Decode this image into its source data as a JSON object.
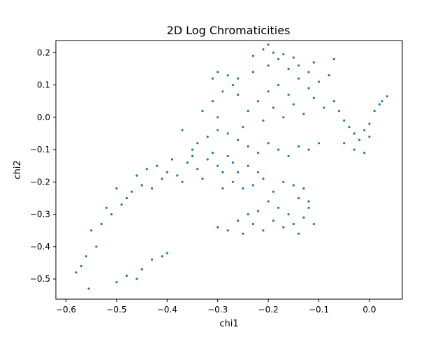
{
  "chart_data": {
    "type": "scatter",
    "title": "2D Log Chromaticities",
    "xlabel": "chi1",
    "ylabel": "chi2",
    "xlim": [
      -0.62,
      0.065
    ],
    "ylim": [
      -0.5625,
      0.2375
    ],
    "xticks": [
      -0.6,
      -0.5,
      -0.4,
      -0.3,
      -0.2,
      -0.1,
      0.0
    ],
    "xtick_labels": [
      "−0.6",
      "−0.5",
      "−0.4",
      "−0.3",
      "−0.2",
      "−0.1",
      "0.0"
    ],
    "yticks": [
      0.2,
      0.1,
      0.0,
      -0.1,
      -0.2,
      -0.3,
      -0.4,
      -0.5
    ],
    "ytick_labels": [
      "0.2",
      "0.1",
      "0.0",
      "−0.1",
      "−0.2",
      "−0.3",
      "−0.4",
      "−0.5"
    ],
    "grid": false,
    "marker_color": "#1f77b4",
    "series": [
      {
        "points": [
          [
            -0.22,
            0.05
          ],
          [
            -0.2,
            0.08
          ],
          [
            -0.18,
            0.1
          ],
          [
            -0.16,
            0.07
          ],
          [
            -0.14,
            0.12
          ],
          [
            -0.12,
            0.09
          ],
          [
            -0.1,
            0.11
          ],
          [
            -0.08,
            0.13
          ],
          [
            -0.24,
            0.02
          ],
          [
            -0.21,
            -0.01
          ],
          [
            -0.19,
            0.03
          ],
          [
            -0.17,
            0.0
          ],
          [
            -0.15,
            0.04
          ],
          [
            -0.13,
            0.01
          ],
          [
            -0.11,
            0.06
          ],
          [
            -0.09,
            0.03
          ],
          [
            -0.26,
            0.07
          ],
          [
            -0.25,
            -0.03
          ],
          [
            -0.23,
            0.14
          ],
          [
            -0.2,
            0.16
          ],
          [
            -0.18,
            0.18
          ],
          [
            -0.16,
            0.15
          ],
          [
            -0.14,
            0.16
          ],
          [
            -0.12,
            0.14
          ],
          [
            -0.07,
            0.05
          ],
          [
            -0.06,
            0.02
          ],
          [
            -0.05,
            -0.01
          ],
          [
            -0.04,
            -0.03
          ],
          [
            -0.03,
            -0.05
          ],
          [
            -0.02,
            -0.07
          ],
          [
            -0.01,
            -0.04
          ],
          [
            0.0,
            -0.02
          ],
          [
            -0.05,
            -0.08
          ],
          [
            -0.03,
            -0.1
          ],
          [
            -0.01,
            -0.11
          ],
          [
            0.0,
            -0.06
          ],
          [
            0.01,
            0.02
          ],
          [
            0.02,
            0.04
          ],
          [
            0.025,
            0.05
          ],
          [
            0.035,
            0.065
          ],
          [
            -0.2,
            0.225
          ],
          [
            -0.21,
            0.21
          ],
          [
            -0.19,
            0.2
          ],
          [
            -0.17,
            0.195
          ],
          [
            -0.23,
            0.19
          ],
          [
            -0.15,
            0.185
          ],
          [
            -0.11,
            0.17
          ],
          [
            -0.07,
            0.18
          ],
          [
            -0.36,
            -0.14
          ],
          [
            -0.34,
            -0.16
          ],
          [
            -0.32,
            -0.13
          ],
          [
            -0.3,
            -0.15
          ],
          [
            -0.28,
            -0.12
          ],
          [
            -0.38,
            -0.18
          ],
          [
            -0.4,
            -0.17
          ],
          [
            -0.42,
            -0.15
          ],
          [
            -0.33,
            -0.19
          ],
          [
            -0.31,
            -0.11
          ],
          [
            -0.29,
            -0.17
          ],
          [
            -0.35,
            -0.12
          ],
          [
            -0.37,
            -0.2
          ],
          [
            -0.39,
            -0.13
          ],
          [
            -0.41,
            -0.19
          ],
          [
            -0.27,
            -0.14
          ],
          [
            -0.44,
            -0.16
          ],
          [
            -0.46,
            -0.18
          ],
          [
            -0.45,
            -0.21
          ],
          [
            -0.43,
            -0.22
          ],
          [
            -0.47,
            -0.23
          ],
          [
            -0.48,
            -0.25
          ],
          [
            -0.5,
            -0.22
          ],
          [
            -0.49,
            -0.27
          ],
          [
            -0.52,
            -0.28
          ],
          [
            -0.51,
            -0.3
          ],
          [
            -0.53,
            -0.33
          ],
          [
            -0.55,
            -0.35
          ],
          [
            -0.54,
            -0.4
          ],
          [
            -0.56,
            -0.43
          ],
          [
            -0.57,
            -0.46
          ],
          [
            -0.58,
            -0.48
          ],
          [
            -0.555,
            -0.53
          ],
          [
            -0.5,
            -0.51
          ],
          [
            -0.48,
            -0.49
          ],
          [
            -0.46,
            -0.5
          ],
          [
            -0.45,
            -0.47
          ],
          [
            -0.43,
            -0.44
          ],
          [
            -0.41,
            -0.43
          ],
          [
            -0.4,
            -0.42
          ],
          [
            -0.2,
            -0.26
          ],
          [
            -0.18,
            -0.28
          ],
          [
            -0.16,
            -0.3
          ],
          [
            -0.14,
            -0.25
          ],
          [
            -0.22,
            -0.29
          ],
          [
            -0.19,
            -0.32
          ],
          [
            -0.17,
            -0.34
          ],
          [
            -0.15,
            -0.33
          ],
          [
            -0.21,
            -0.35
          ],
          [
            -0.23,
            -0.33
          ],
          [
            -0.25,
            -0.36
          ],
          [
            -0.13,
            -0.31
          ],
          [
            -0.12,
            -0.28
          ],
          [
            -0.11,
            -0.33
          ],
          [
            -0.24,
            -0.3
          ],
          [
            -0.26,
            -0.32
          ],
          [
            -0.28,
            -0.35
          ],
          [
            -0.3,
            -0.34
          ],
          [
            -0.13,
            -0.22
          ],
          [
            -0.15,
            -0.21
          ],
          [
            -0.17,
            -0.2
          ],
          [
            -0.19,
            -0.23
          ],
          [
            -0.12,
            -0.26
          ],
          [
            -0.14,
            -0.36
          ],
          [
            -0.18,
            -0.1
          ],
          [
            -0.16,
            -0.12
          ],
          [
            -0.14,
            -0.09
          ],
          [
            -0.2,
            -0.08
          ],
          [
            -0.22,
            -0.11
          ],
          [
            -0.24,
            -0.09
          ],
          [
            -0.12,
            -0.1
          ],
          [
            -0.1,
            -0.08
          ],
          [
            -0.26,
            -0.07
          ],
          [
            -0.28,
            -0.05
          ],
          [
            -0.3,
            -0.04
          ],
          [
            -0.32,
            -0.06
          ],
          [
            -0.34,
            -0.08
          ],
          [
            -0.3,
            0.0
          ],
          [
            -0.31,
            0.05
          ],
          [
            -0.33,
            0.02
          ],
          [
            -0.27,
            0.1
          ],
          [
            -0.29,
            0.08
          ],
          [
            -0.31,
            0.12
          ],
          [
            -0.3,
            0.14
          ],
          [
            -0.28,
            0.13
          ],
          [
            -0.26,
            0.12
          ],
          [
            -0.35,
            -0.1
          ],
          [
            -0.37,
            -0.04
          ],
          [
            -0.25,
            -0.22
          ],
          [
            -0.27,
            -0.2
          ],
          [
            -0.29,
            -0.22
          ],
          [
            -0.23,
            -0.21
          ],
          [
            -0.21,
            -0.19
          ],
          [
            -0.26,
            -0.17
          ],
          [
            -0.24,
            -0.15
          ],
          [
            -0.22,
            -0.17
          ]
        ]
      }
    ]
  }
}
